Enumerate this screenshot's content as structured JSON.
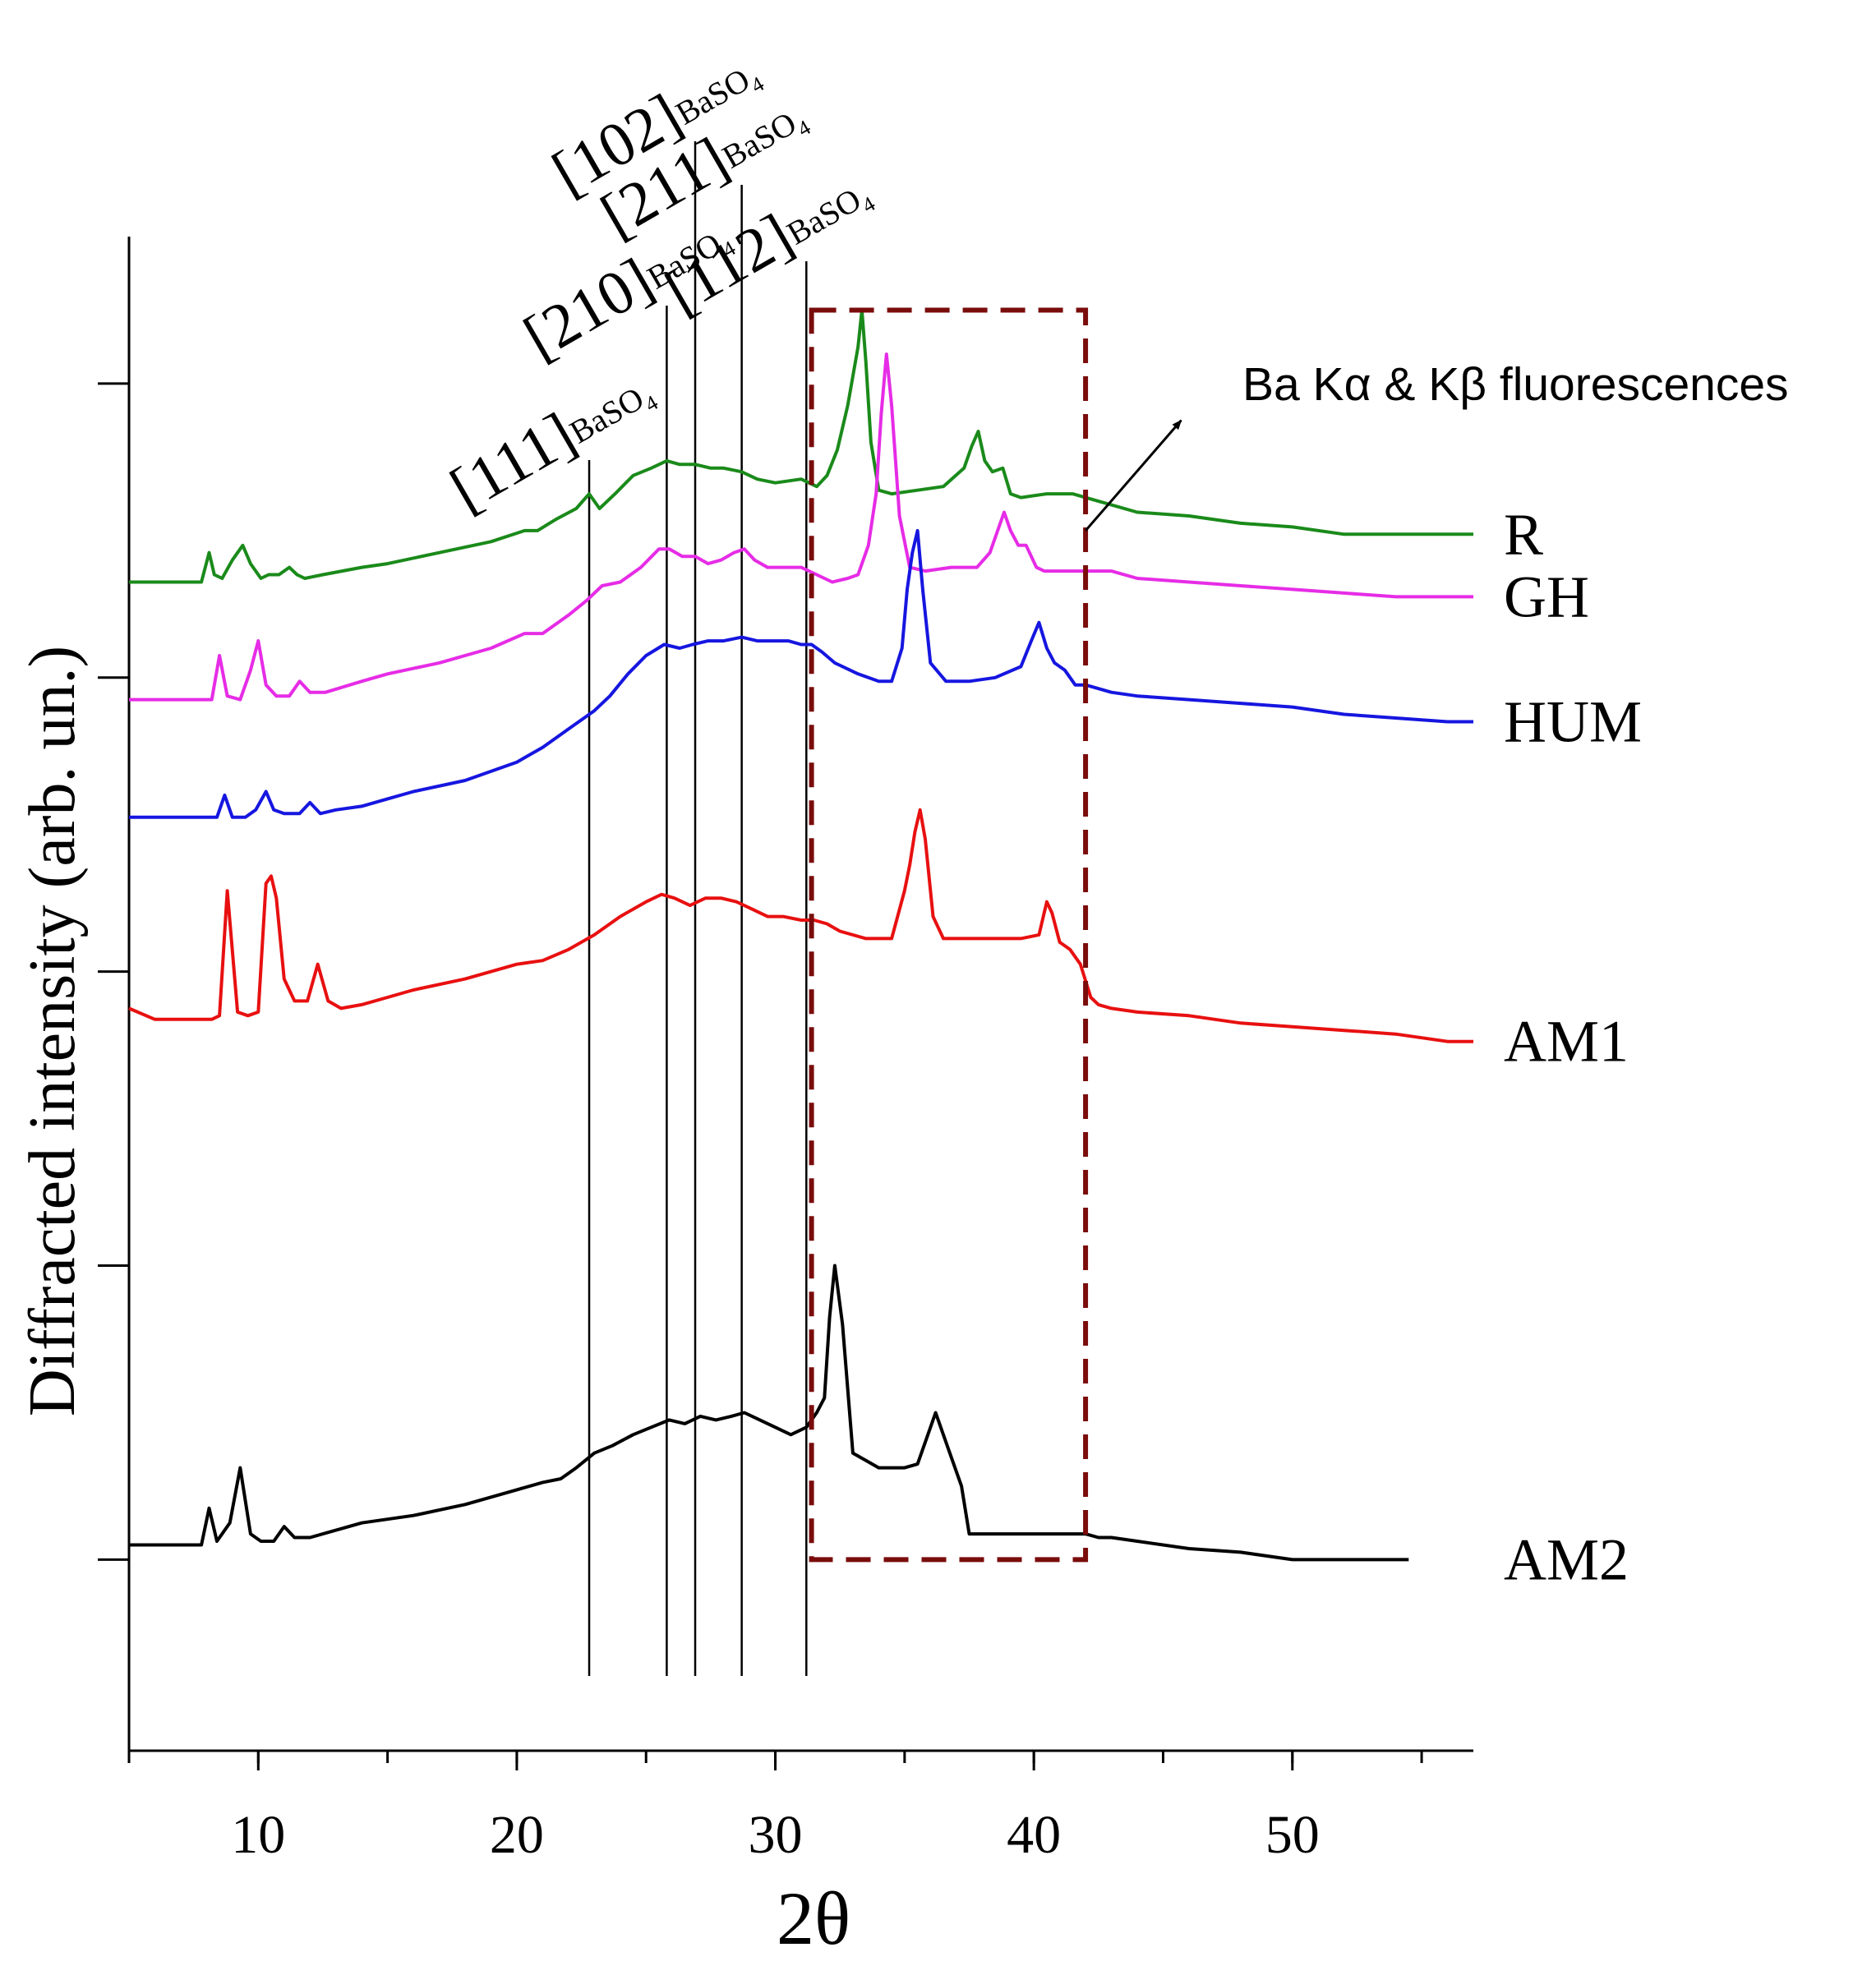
{
  "chart_data": {
    "type": "line",
    "title": "",
    "xlabel": "2θ",
    "ylabel": "Diffracted intensity (arb. un.)",
    "xlim": [
      5,
      57
    ],
    "ylim": [
      -2.6,
      18.0
    ],
    "x_ticks": [
      10,
      20,
      30,
      40,
      50
    ],
    "x_tick_labels": [
      "10",
      "20",
      "30",
      "40",
      "50"
    ],
    "y_ticks": [
      0,
      4,
      8,
      12,
      16
    ],
    "grid": false,
    "reflections": [
      {
        "hkl": "[111]",
        "phase": "BaSO",
        "sub": "4",
        "x": 22.8
      },
      {
        "hkl": "[210]",
        "phase": "BaSO",
        "sub": "4",
        "x": 25.8
      },
      {
        "hkl": "[102]",
        "phase": "BaSO",
        "sub": "4",
        "x": 26.9
      },
      {
        "hkl": "[211]",
        "phase": "BaSO",
        "sub": "4",
        "x": 28.7
      },
      {
        "hkl": "[112]",
        "phase": "BaSO",
        "sub": "4",
        "x": 31.2
      }
    ],
    "highlight_region": {
      "x": [
        31.4,
        42.0
      ],
      "y": [
        0.0,
        17.0
      ],
      "color": "#7a0c0c",
      "style": "dashed"
    },
    "annotation": {
      "text": "Ba Kα & Kβ fluorescences",
      "arrow_from": [
        42.0,
        14.0
      ],
      "arrow_to": [
        45.7,
        15.5
      ]
    },
    "series": [
      {
        "name": "R",
        "color": "#1a8a1a",
        "x": [
          5,
          6,
          7,
          7.8,
          8.1,
          8.3,
          8.6,
          9,
          9.4,
          9.7,
          10.1,
          10.4,
          10.8,
          11.2,
          11.5,
          11.8,
          12.5,
          14,
          15,
          17,
          19,
          20.3,
          20.8,
          21.5,
          22.3,
          22.8,
          23.2,
          23.8,
          24.5,
          25.2,
          25.8,
          26.3,
          26.9,
          27.5,
          28,
          28.7,
          29.3,
          30,
          31,
          31.6,
          32,
          32.4,
          32.8,
          33,
          33.2,
          33.35,
          33.5,
          33.7,
          34,
          34.5,
          35.5,
          36.5,
          37.3,
          37.6,
          37.85,
          38.1,
          38.4,
          38.8,
          39.1,
          39.5,
          40.5,
          41.5,
          42.5,
          44,
          46,
          48,
          50,
          52,
          54,
          56,
          57
        ],
        "y": [
          13.3,
          13.3,
          13.3,
          13.3,
          13.7,
          13.4,
          13.35,
          13.6,
          13.8,
          13.55,
          13.35,
          13.4,
          13.4,
          13.5,
          13.4,
          13.35,
          13.4,
          13.5,
          13.55,
          13.7,
          13.85,
          14.0,
          14.0,
          14.15,
          14.3,
          14.5,
          14.3,
          14.5,
          14.75,
          14.85,
          14.95,
          14.9,
          14.9,
          14.85,
          14.85,
          14.8,
          14.7,
          14.65,
          14.7,
          14.6,
          14.75,
          15.1,
          15.7,
          16.1,
          16.5,
          17.0,
          16.3,
          15.2,
          14.55,
          14.5,
          14.55,
          14.6,
          14.85,
          15.15,
          15.35,
          14.95,
          14.8,
          14.85,
          14.5,
          14.45,
          14.5,
          14.5,
          14.4,
          14.25,
          14.2,
          14.1,
          14.05,
          13.95,
          13.95,
          13.95,
          13.95
        ]
      },
      {
        "name": "GH",
        "color": "#e62ce6",
        "x": [
          5,
          6,
          7,
          8.2,
          8.5,
          8.8,
          9.3,
          9.7,
          10,
          10.3,
          10.7,
          11.2,
          11.6,
          12,
          12.6,
          14,
          15,
          17,
          19,
          20.3,
          21,
          22,
          22.7,
          23.3,
          24,
          24.8,
          25.5,
          25.9,
          26.4,
          26.9,
          27.4,
          27.9,
          28.4,
          28.8,
          29.2,
          29.7,
          30.3,
          31,
          31.6,
          32.2,
          32.8,
          33.2,
          33.6,
          33.9,
          34.1,
          34.3,
          34.5,
          34.8,
          35.2,
          35.8,
          36.8,
          37.8,
          38.3,
          38.6,
          38.85,
          39.1,
          39.4,
          39.7,
          40.1,
          40.4,
          41,
          42,
          43,
          44,
          46,
          48,
          50,
          52,
          54,
          56,
          57
        ],
        "y": [
          11.7,
          11.7,
          11.7,
          11.7,
          12.3,
          11.75,
          11.7,
          12.1,
          12.5,
          11.9,
          11.75,
          11.75,
          11.95,
          11.8,
          11.8,
          11.95,
          12.05,
          12.2,
          12.4,
          12.6,
          12.6,
          12.85,
          13.05,
          13.25,
          13.3,
          13.5,
          13.75,
          13.75,
          13.65,
          13.65,
          13.55,
          13.6,
          13.7,
          13.75,
          13.6,
          13.5,
          13.5,
          13.5,
          13.4,
          13.3,
          13.35,
          13.4,
          13.8,
          14.5,
          15.6,
          16.4,
          15.7,
          14.2,
          13.5,
          13.45,
          13.5,
          13.5,
          13.7,
          14.0,
          14.25,
          14.0,
          13.8,
          13.8,
          13.5,
          13.45,
          13.45,
          13.45,
          13.45,
          13.35,
          13.3,
          13.25,
          13.2,
          13.15,
          13.1,
          13.1,
          13.1
        ]
      },
      {
        "name": "HUM",
        "color": "#1616e0",
        "x": [
          5,
          6,
          7,
          8.4,
          8.7,
          9,
          9.5,
          9.9,
          10.3,
          10.6,
          11,
          11.6,
          12,
          12.4,
          13,
          14,
          15,
          16,
          18,
          20,
          21,
          22,
          23,
          23.6,
          24.3,
          25,
          25.7,
          26.3,
          26.8,
          27.4,
          28,
          28.7,
          29.3,
          29.9,
          30.5,
          31,
          31.4,
          31.8,
          32.3,
          33.2,
          34,
          34.5,
          34.9,
          35.1,
          35.3,
          35.5,
          35.7,
          36,
          36.6,
          37.5,
          38.5,
          39.5,
          39.9,
          40.2,
          40.5,
          40.8,
          41.2,
          41.6,
          42,
          43,
          44,
          46,
          48,
          50,
          52,
          54,
          56,
          57
        ],
        "y": [
          10.1,
          10.1,
          10.1,
          10.1,
          10.4,
          10.1,
          10.1,
          10.2,
          10.45,
          10.2,
          10.15,
          10.15,
          10.3,
          10.15,
          10.2,
          10.25,
          10.35,
          10.45,
          10.6,
          10.85,
          11.05,
          11.3,
          11.55,
          11.75,
          12.05,
          12.3,
          12.45,
          12.4,
          12.45,
          12.5,
          12.5,
          12.55,
          12.5,
          12.5,
          12.5,
          12.45,
          12.45,
          12.35,
          12.2,
          12.05,
          11.95,
          11.95,
          12.4,
          13.2,
          13.7,
          14.0,
          13.2,
          12.2,
          11.95,
          11.95,
          12.0,
          12.15,
          12.5,
          12.75,
          12.4,
          12.2,
          12.1,
          11.9,
          11.9,
          11.8,
          11.75,
          11.7,
          11.65,
          11.6,
          11.5,
          11.45,
          11.4,
          11.4
        ]
      },
      {
        "name": "AM1",
        "color": "#e81010",
        "x": [
          5,
          6,
          7,
          8.2,
          8.5,
          8.8,
          9.2,
          9.6,
          10,
          10.3,
          10.5,
          10.7,
          11,
          11.4,
          11.9,
          12.3,
          12.7,
          13.2,
          14,
          15,
          16,
          18,
          20,
          21,
          22,
          23,
          24,
          25,
          25.6,
          26.1,
          26.7,
          27.3,
          27.9,
          28.5,
          29.1,
          29.7,
          30.3,
          31,
          31.5,
          32,
          32.5,
          33.5,
          34.5,
          35,
          35.2,
          35.4,
          35.6,
          35.8,
          36.1,
          36.5,
          37.5,
          38.5,
          39.5,
          40.2,
          40.5,
          40.7,
          41,
          41.4,
          41.8,
          42.2,
          42.5,
          43,
          44,
          46,
          48,
          50,
          52,
          54,
          56,
          57
        ],
        "y": [
          7.5,
          7.35,
          7.35,
          7.35,
          7.4,
          9.1,
          7.45,
          7.4,
          7.45,
          9.2,
          9.3,
          9.0,
          7.9,
          7.6,
          7.6,
          8.1,
          7.6,
          7.5,
          7.55,
          7.65,
          7.75,
          7.9,
          8.1,
          8.15,
          8.3,
          8.5,
          8.75,
          8.95,
          9.05,
          9.0,
          8.9,
          9.0,
          9.0,
          8.95,
          8.85,
          8.75,
          8.75,
          8.7,
          8.7,
          8.65,
          8.55,
          8.45,
          8.45,
          9.1,
          9.45,
          9.9,
          10.2,
          9.8,
          8.75,
          8.45,
          8.45,
          8.45,
          8.45,
          8.5,
          8.95,
          8.8,
          8.4,
          8.3,
          8.1,
          7.65,
          7.55,
          7.5,
          7.45,
          7.4,
          7.3,
          7.25,
          7.2,
          7.15,
          7.05,
          7.05
        ]
      },
      {
        "name": "AM2",
        "color": "#000000",
        "x": [
          5,
          6,
          7,
          7.8,
          8.1,
          8.4,
          8.9,
          9.3,
          9.7,
          10.1,
          10.6,
          11,
          11.4,
          12,
          14,
          15,
          16,
          18,
          20,
          21,
          21.7,
          22.3,
          23,
          23.7,
          24.5,
          25.2,
          25.9,
          26.5,
          27.1,
          27.7,
          28.3,
          28.8,
          29.4,
          30,
          30.6,
          31.2,
          31.6,
          31.9,
          32.1,
          32.3,
          32.6,
          33,
          34,
          35,
          35.5,
          35.9,
          36.2,
          36.5,
          36.9,
          37.2,
          37.5,
          37.8,
          38.2,
          40,
          42,
          42.5,
          43,
          44,
          46,
          48,
          50,
          52,
          54,
          54.5
        ],
        "y": [
          0.2,
          0.2,
          0.2,
          0.2,
          0.7,
          0.25,
          0.5,
          1.25,
          0.35,
          0.25,
          0.25,
          0.45,
          0.3,
          0.3,
          0.5,
          0.55,
          0.6,
          0.75,
          0.95,
          1.05,
          1.1,
          1.25,
          1.45,
          1.55,
          1.7,
          1.8,
          1.9,
          1.85,
          1.95,
          1.9,
          1.95,
          2.0,
          1.9,
          1.8,
          1.7,
          1.8,
          2.0,
          2.2,
          3.3,
          4.0,
          3.2,
          1.45,
          1.25,
          1.25,
          1.3,
          1.7,
          2.0,
          1.7,
          1.3,
          1.0,
          0.35,
          0.35,
          0.35,
          0.35,
          0.35,
          0.3,
          0.3,
          0.25,
          0.15,
          0.1,
          0.0,
          0.0,
          0.0,
          0.0
        ]
      }
    ]
  }
}
